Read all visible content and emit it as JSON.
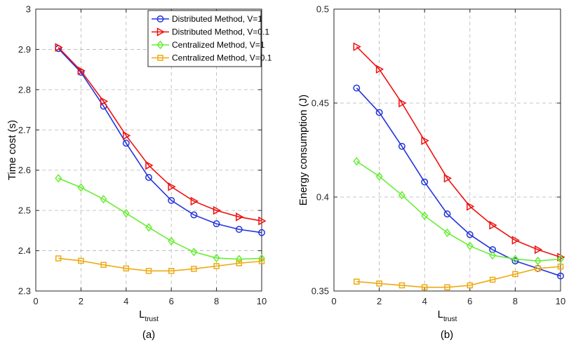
{
  "chart_data": [
    {
      "type": "line",
      "caption": "(a)",
      "ylabel": "Time cost (s)",
      "xlabel": {
        "main": "L",
        "subscript": "trust"
      },
      "xlim": [
        0,
        10
      ],
      "ylim": [
        2.3,
        3.0
      ],
      "xticks": [
        "0",
        "2",
        "4",
        "6",
        "8",
        "10"
      ],
      "yticks": [
        "2.3",
        "2.4",
        "2.5",
        "2.6",
        "2.7",
        "2.8",
        "2.9",
        "3"
      ],
      "grid": true,
      "legend_position": "top-right",
      "x": [
        1,
        2,
        3,
        4,
        5,
        6,
        7,
        8,
        9,
        10
      ],
      "series": [
        {
          "name": "Distributed Method, V=1",
          "color": "#2233dd",
          "marker": "circle",
          "values": [
            2.902,
            2.843,
            2.759,
            2.667,
            2.582,
            2.525,
            2.489,
            2.467,
            2.453,
            2.445
          ]
        },
        {
          "name": "Distributed Method, V=0.1",
          "color": "#ee1111",
          "marker": "triangle-right",
          "values": [
            2.905,
            2.847,
            2.771,
            2.686,
            2.612,
            2.559,
            2.523,
            2.5,
            2.484,
            2.474
          ]
        },
        {
          "name": "Centralized Method, V=1",
          "color": "#66ee33",
          "marker": "diamond",
          "values": [
            2.58,
            2.557,
            2.528,
            2.493,
            2.458,
            2.424,
            2.397,
            2.382,
            2.379,
            2.381
          ]
        },
        {
          "name": "Centralized Method, V=0.1",
          "color": "#eeaa11",
          "marker": "square",
          "values": [
            2.381,
            2.375,
            2.365,
            2.356,
            2.35,
            2.35,
            2.355,
            2.362,
            2.369,
            2.374
          ]
        }
      ]
    },
    {
      "type": "line",
      "caption": "(b)",
      "ylabel": "Energy consumption (J)",
      "xlabel": {
        "main": "L",
        "subscript": "trust"
      },
      "xlim": [
        0,
        10
      ],
      "ylim": [
        0.35,
        0.5
      ],
      "xticks": [
        "0",
        "2",
        "4",
        "6",
        "8",
        "10"
      ],
      "yticks": [
        "0.35",
        "0.4",
        "0.45",
        "0.5"
      ],
      "grid": true,
      "legend_position": "none",
      "x": [
        1,
        2,
        3,
        4,
        5,
        6,
        7,
        8,
        9,
        10
      ],
      "series": [
        {
          "name": "Distributed Method, V=1",
          "color": "#2233dd",
          "marker": "circle",
          "values": [
            0.458,
            0.445,
            0.427,
            0.408,
            0.391,
            0.38,
            0.372,
            0.366,
            0.362,
            0.358
          ]
        },
        {
          "name": "Distributed Method, V=0.1",
          "color": "#ee1111",
          "marker": "triangle-right",
          "values": [
            0.48,
            0.468,
            0.45,
            0.43,
            0.41,
            0.395,
            0.385,
            0.377,
            0.372,
            0.368
          ]
        },
        {
          "name": "Centralized Method, V=1",
          "color": "#66ee33",
          "marker": "diamond",
          "values": [
            0.419,
            0.411,
            0.401,
            0.39,
            0.381,
            0.374,
            0.369,
            0.367,
            0.366,
            0.367
          ]
        },
        {
          "name": "Centralized Method, V=0.1",
          "color": "#eeaa11",
          "marker": "square",
          "values": [
            0.355,
            0.354,
            0.353,
            0.352,
            0.352,
            0.353,
            0.356,
            0.359,
            0.362,
            0.363
          ]
        }
      ]
    }
  ]
}
